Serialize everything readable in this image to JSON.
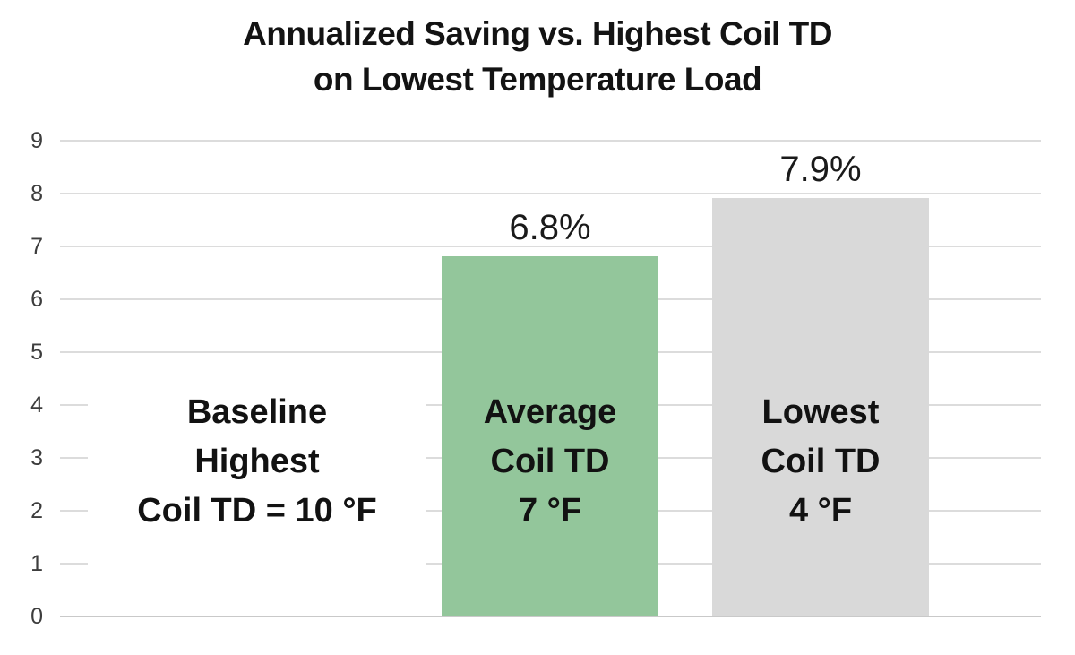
{
  "title": {
    "lines": [
      "Annualized Saving vs. Highest Coil TD",
      "on Lowest Temperature Load"
    ]
  },
  "y_axis": {
    "ticks": [
      "9",
      "8",
      "7",
      "6",
      "5",
      "4",
      "3",
      "2",
      "1",
      "0"
    ]
  },
  "categories": [
    {
      "name": "baseline",
      "label_lines": [
        "Baseline",
        "Highest",
        "Coil TD = 10 °F"
      ],
      "value": 0,
      "data_label": "",
      "color": "transparent"
    },
    {
      "name": "average-coil-td",
      "label_lines": [
        "Average",
        "Coil TD",
        "7 °F"
      ],
      "value": 6.8,
      "data_label": "6.8%",
      "color": "#93c69b"
    },
    {
      "name": "lowest-coil-td",
      "label_lines": [
        "Lowest",
        "Coil TD",
        "4 °F"
      ],
      "value": 7.9,
      "data_label": "7.9%",
      "color": "#d9d9d9"
    }
  ],
  "chart_data": {
    "type": "bar",
    "title": "Annualized Saving vs. Highest Coil TD on Lowest Temperature Load",
    "categories": [
      "Baseline Highest Coil TD = 10 °F",
      "Average Coil TD 7 °F",
      "Lowest Coil TD 4 °F"
    ],
    "values": [
      0,
      6.8,
      7.9
    ],
    "data_labels": [
      "",
      "6.8%",
      "7.9%"
    ],
    "ylim": [
      0,
      9
    ],
    "yticks": [
      0,
      1,
      2,
      3,
      4,
      5,
      6,
      7,
      8,
      9
    ],
    "bar_colors": [
      "none",
      "#93c69b",
      "#d9d9d9"
    ],
    "grid": true,
    "legend": false,
    "xlabel": "",
    "ylabel": ""
  },
  "colors": {
    "green_bar": "#93c69b",
    "gray_bar": "#d9d9d9",
    "gridline": "#dcdcdc",
    "axis_line": "#c9c9c9",
    "tick_label": "#3d3d3d",
    "text": "#131313",
    "background": "#ffffff"
  }
}
